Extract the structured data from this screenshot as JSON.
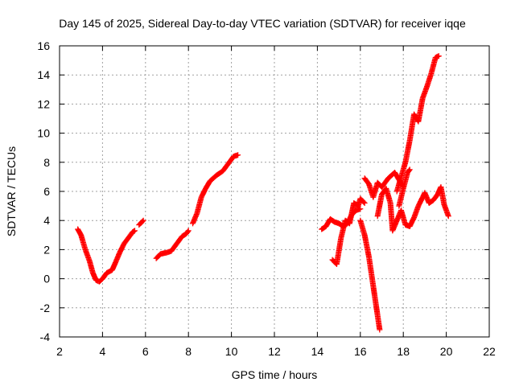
{
  "chart_data": {
    "type": "scatter",
    "title": "Day 145 of 2025, Sidereal Day-to-day VTEC variation (SDTVAR) for receiver iqqe",
    "xlabel": "GPS time / hours",
    "ylabel": "SDTVAR / TECUs",
    "xlim": [
      2,
      22
    ],
    "ylim": [
      -4,
      16
    ],
    "xticks": [
      2,
      4,
      6,
      8,
      10,
      12,
      14,
      16,
      18,
      20,
      22
    ],
    "yticks": [
      -4,
      -2,
      0,
      2,
      4,
      6,
      8,
      10,
      12,
      14,
      16
    ],
    "grid": true,
    "marker": "plus",
    "series": [
      {
        "name": "segment-1",
        "color": "#ff0000",
        "x": [
          2.85,
          3.0,
          3.2,
          3.4,
          3.55,
          3.7,
          3.85,
          4.0,
          4.2,
          4.45,
          4.6,
          4.8,
          5.0,
          5.2,
          5.4,
          5.5
        ],
        "y": [
          3.4,
          3.0,
          2.0,
          1.2,
          0.4,
          -0.1,
          -0.2,
          0.0,
          0.4,
          0.6,
          1.1,
          1.8,
          2.4,
          2.8,
          3.2,
          3.3
        ]
      },
      {
        "name": "segment-2",
        "color": "#ff0000",
        "x": [
          5.7,
          5.9
        ],
        "y": [
          3.7,
          4.0
        ]
      },
      {
        "name": "segment-3",
        "color": "#ff0000",
        "x": [
          6.5,
          6.7,
          7.0,
          7.2,
          7.5,
          7.7,
          7.9,
          8.0
        ],
        "y": [
          1.4,
          1.7,
          1.8,
          1.9,
          2.5,
          2.9,
          3.1,
          3.3
        ]
      },
      {
        "name": "segment-4",
        "color": "#ff0000",
        "x": [
          8.2,
          8.4,
          8.6,
          8.8,
          9.0,
          9.3,
          9.6,
          9.9,
          10.1,
          10.3
        ],
        "y": [
          3.8,
          4.5,
          5.6,
          6.2,
          6.7,
          7.1,
          7.4,
          8.0,
          8.4,
          8.5
        ]
      },
      {
        "name": "segment-5",
        "color": "#ff0000",
        "x": [
          14.2,
          14.4,
          14.6,
          14.8,
          15.0,
          15.2,
          15.4,
          15.6,
          15.8,
          16.0
        ],
        "y": [
          3.4,
          3.6,
          4.1,
          3.9,
          3.8,
          3.6,
          3.8,
          4.4,
          4.7,
          4.8
        ]
      },
      {
        "name": "segment-6",
        "color": "#ff0000",
        "x": [
          14.7,
          14.9,
          15.1,
          15.3,
          15.5,
          15.7,
          15.9,
          16.0,
          16.2
        ],
        "y": [
          1.3,
          1.0,
          2.8,
          4.0,
          3.8,
          5.2,
          5.0,
          5.5,
          5.2
        ]
      },
      {
        "name": "segment-7",
        "color": "#ff0000",
        "x": [
          16.0,
          16.2,
          16.4,
          16.6,
          16.75,
          16.9
        ],
        "y": [
          4.0,
          3.0,
          1.5,
          -0.5,
          -2.0,
          -3.5
        ]
      },
      {
        "name": "segment-8",
        "color": "#ff0000",
        "x": [
          16.2,
          16.4,
          16.6,
          16.8,
          17.0,
          17.3,
          17.6,
          17.8,
          18.0
        ],
        "y": [
          6.9,
          6.5,
          5.6,
          6.6,
          6.3,
          6.9,
          7.3,
          6.8,
          6.3
        ]
      },
      {
        "name": "segment-9",
        "color": "#ff0000",
        "x": [
          16.8,
          17.0,
          17.2,
          17.4,
          17.5,
          17.7,
          17.9,
          18.1,
          18.3,
          18.5,
          18.7,
          19.0,
          19.2,
          19.4,
          19.6,
          19.75,
          19.9,
          20.1
        ],
        "y": [
          4.3,
          5.8,
          6.2,
          5.2,
          3.3,
          4.0,
          4.7,
          3.7,
          3.6,
          4.2,
          5.0,
          5.9,
          5.2,
          5.4,
          5.8,
          6.3,
          5.1,
          4.3
        ]
      },
      {
        "name": "segment-10",
        "color": "#ff0000",
        "x": [
          17.7,
          17.9,
          18.1,
          18.3,
          18.5,
          18.7,
          18.9,
          19.1,
          19.3,
          19.5,
          19.65
        ],
        "y": [
          6.0,
          7.0,
          8.0,
          9.5,
          11.3,
          10.8,
          12.4,
          13.2,
          14.1,
          15.2,
          15.3
        ]
      },
      {
        "name": "segment-11",
        "color": "#ff0000",
        "x": [
          17.8,
          18.0,
          18.2,
          18.3
        ],
        "y": [
          5.0,
          6.2,
          7.3,
          7.5
        ]
      }
    ]
  }
}
